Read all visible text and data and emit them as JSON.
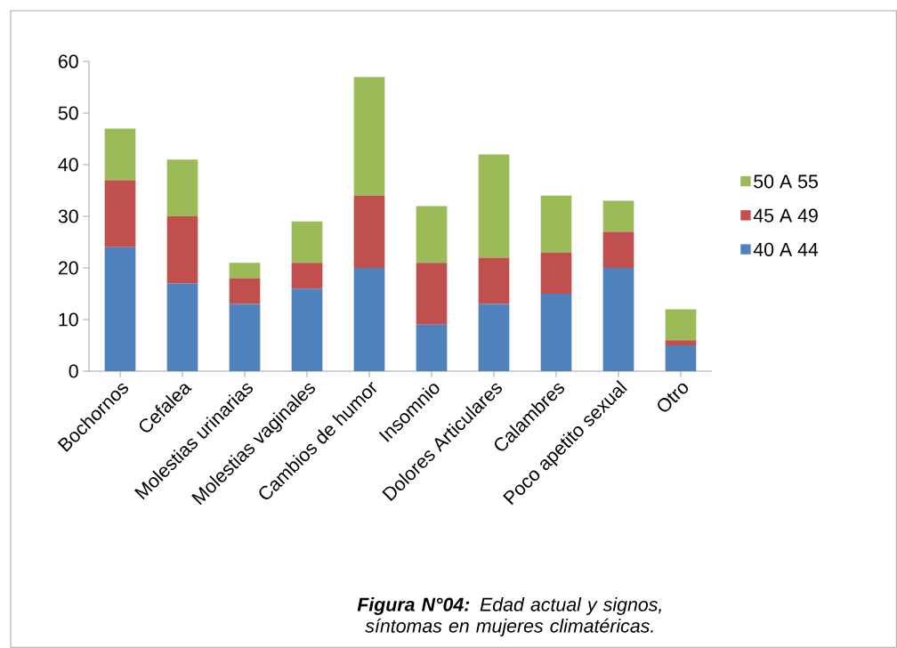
{
  "chart_data": {
    "type": "bar",
    "stacked": true,
    "categories": [
      "Bochornos",
      "Cefalea",
      "Molestias urinarias",
      "Molestias vaginales",
      "Cambios de humor",
      "Insomnio",
      "Dolores Articulares",
      "Calambres",
      "Poco apetito sexual",
      "Otro"
    ],
    "series": [
      {
        "name": "40 A 44",
        "color": "#4f81bd",
        "values": [
          24,
          17,
          13,
          16,
          20,
          9,
          13,
          15,
          20,
          5
        ]
      },
      {
        "name": "45 A 49",
        "color": "#c0504d",
        "values": [
          13,
          13,
          5,
          5,
          14,
          12,
          9,
          8,
          7,
          1
        ]
      },
      {
        "name": "50 A 55",
        "color": "#9bbb59",
        "values": [
          10,
          11,
          3,
          8,
          23,
          11,
          20,
          11,
          6,
          6
        ]
      }
    ],
    "ylim": [
      0,
      60
    ],
    "yticks": [
      0,
      10,
      20,
      30,
      40,
      50,
      60
    ],
    "legend": "right",
    "annotations": [
      "**Figura N°04:** Edad actual y signos, síntomas en mujeres climatéricas."
    ]
  }
}
